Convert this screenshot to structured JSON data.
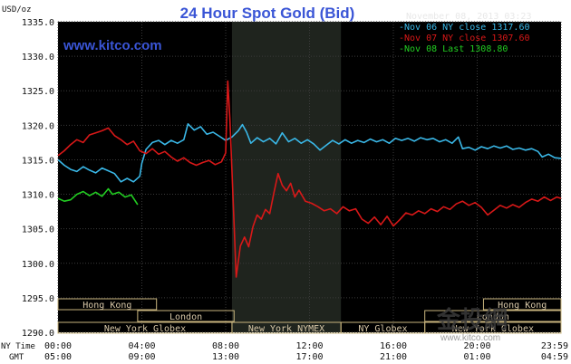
{
  "chart_data": {
    "type": "line",
    "title": "24 Hour Spot Gold (Bid)",
    "url_text": "www.kitco.com",
    "datetime": "November 08, 2013 03:23",
    "y_unit": "USD/oz",
    "ylim": [
      1290,
      1335
    ],
    "y_ticks": [
      "1335.0",
      "1330.0",
      "1325.0",
      "1320.0",
      "1315.0",
      "1310.0",
      "1305.0",
      "1300.0",
      "1295.0",
      "1290.0"
    ],
    "x_hours": [
      0,
      24
    ],
    "tz_labels": [
      "NY Time",
      "GMT"
    ],
    "x_ticks_ny": [
      "00:00",
      "04:00",
      "08:00",
      "12:00",
      "16:00",
      "20:00",
      "23:59"
    ],
    "x_ticks_gmt": [
      "05:00",
      "09:00",
      "13:00",
      "17:00",
      "21:00",
      "01:00",
      "04:59"
    ],
    "grid": true,
    "highlight_band_hours": [
      8.3,
      13.5
    ],
    "sessions": [
      {
        "label": "Hong Kong",
        "start": 0,
        "end": 4.7
      },
      {
        "label": "London",
        "start": 3.8,
        "end": 8.4
      },
      {
        "label": "New York Globex",
        "start": 0,
        "end": 8.3
      },
      {
        "label": "New York NYMEX",
        "start": 8.3,
        "end": 13.5
      },
      {
        "label": "NY Globex",
        "start": 13.5,
        "end": 17.5
      },
      {
        "label": "Hong Kong",
        "start": 20.3,
        "end": 24
      },
      {
        "label": "London",
        "start": 17.5,
        "end": 24
      },
      {
        "label": "New York Globex",
        "start": 17.5,
        "end": 24
      }
    ],
    "legend_position": "top-right",
    "series": [
      {
        "name": "Nov 06 NY close 1317.60",
        "color": "#3ab8e8",
        "points": [
          [
            0,
            1315.0
          ],
          [
            0.3,
            1314.2
          ],
          [
            0.6,
            1313.6
          ],
          [
            0.9,
            1313.3
          ],
          [
            1.2,
            1314.0
          ],
          [
            1.5,
            1313.5
          ],
          [
            1.8,
            1313.1
          ],
          [
            2.1,
            1313.8
          ],
          [
            2.4,
            1313.4
          ],
          [
            2.7,
            1313.0
          ],
          [
            3.0,
            1311.8
          ],
          [
            3.3,
            1312.3
          ],
          [
            3.6,
            1311.8
          ],
          [
            3.9,
            1312.6
          ],
          [
            4.0,
            1314.5
          ],
          [
            4.2,
            1316.5
          ],
          [
            4.5,
            1317.5
          ],
          [
            4.8,
            1317.8
          ],
          [
            5.1,
            1317.2
          ],
          [
            5.4,
            1317.8
          ],
          [
            5.7,
            1317.4
          ],
          [
            6.0,
            1317.9
          ],
          [
            6.2,
            1320.2
          ],
          [
            6.5,
            1319.3
          ],
          [
            6.8,
            1319.8
          ],
          [
            7.1,
            1318.7
          ],
          [
            7.4,
            1319.0
          ],
          [
            7.7,
            1318.4
          ],
          [
            8.0,
            1317.8
          ],
          [
            8.3,
            1318.3
          ],
          [
            8.6,
            1319.2
          ],
          [
            8.8,
            1320.1
          ],
          [
            9.0,
            1319.0
          ],
          [
            9.2,
            1317.4
          ],
          [
            9.5,
            1318.2
          ],
          [
            9.8,
            1317.6
          ],
          [
            10.1,
            1318.1
          ],
          [
            10.4,
            1317.3
          ],
          [
            10.7,
            1318.9
          ],
          [
            11.0,
            1317.6
          ],
          [
            11.3,
            1318.1
          ],
          [
            11.6,
            1317.4
          ],
          [
            11.9,
            1317.9
          ],
          [
            12.2,
            1317.3
          ],
          [
            12.5,
            1316.4
          ],
          [
            12.8,
            1317.1
          ],
          [
            13.1,
            1317.8
          ],
          [
            13.4,
            1317.3
          ],
          [
            13.7,
            1317.9
          ],
          [
            14.0,
            1317.4
          ],
          [
            14.3,
            1317.8
          ],
          [
            14.6,
            1317.5
          ],
          [
            14.9,
            1318.0
          ],
          [
            15.2,
            1317.6
          ],
          [
            15.5,
            1317.9
          ],
          [
            15.8,
            1317.4
          ],
          [
            16.1,
            1318.1
          ],
          [
            16.4,
            1317.8
          ],
          [
            16.7,
            1318.1
          ],
          [
            17.0,
            1317.7
          ],
          [
            17.3,
            1318.2
          ],
          [
            17.6,
            1317.9
          ],
          [
            17.9,
            1318.1
          ],
          [
            18.2,
            1317.6
          ],
          [
            18.5,
            1317.9
          ],
          [
            18.8,
            1317.4
          ],
          [
            19.1,
            1318.3
          ],
          [
            19.3,
            1316.6
          ],
          [
            19.6,
            1316.8
          ],
          [
            19.9,
            1316.4
          ],
          [
            20.2,
            1316.9
          ],
          [
            20.5,
            1316.6
          ],
          [
            20.8,
            1317.0
          ],
          [
            21.1,
            1316.7
          ],
          [
            21.4,
            1317.0
          ],
          [
            21.7,
            1316.5
          ],
          [
            22.0,
            1316.7
          ],
          [
            22.3,
            1316.4
          ],
          [
            22.6,
            1316.6
          ],
          [
            22.9,
            1316.2
          ],
          [
            23.1,
            1315.4
          ],
          [
            23.4,
            1315.8
          ],
          [
            23.7,
            1315.3
          ],
          [
            24.0,
            1315.2
          ]
        ]
      },
      {
        "name": "Nov 07 NY close 1307.60",
        "color": "#d81818",
        "points": [
          [
            0,
            1315.6
          ],
          [
            0.3,
            1316.3
          ],
          [
            0.6,
            1317.2
          ],
          [
            0.9,
            1317.9
          ],
          [
            1.2,
            1317.5
          ],
          [
            1.5,
            1318.6
          ],
          [
            1.8,
            1318.9
          ],
          [
            2.1,
            1319.2
          ],
          [
            2.4,
            1319.6
          ],
          [
            2.7,
            1318.5
          ],
          [
            3.0,
            1317.9
          ],
          [
            3.3,
            1317.2
          ],
          [
            3.6,
            1317.7
          ],
          [
            3.9,
            1316.3
          ],
          [
            4.2,
            1315.9
          ],
          [
            4.5,
            1316.6
          ],
          [
            4.8,
            1315.8
          ],
          [
            5.1,
            1316.2
          ],
          [
            5.4,
            1315.4
          ],
          [
            5.7,
            1314.8
          ],
          [
            6.0,
            1315.3
          ],
          [
            6.3,
            1314.6
          ],
          [
            6.6,
            1314.2
          ],
          [
            6.9,
            1314.6
          ],
          [
            7.2,
            1314.9
          ],
          [
            7.5,
            1314.3
          ],
          [
            7.8,
            1314.7
          ],
          [
            8.0,
            1316.0
          ],
          [
            8.1,
            1326.4
          ],
          [
            8.2,
            1321.0
          ],
          [
            8.3,
            1313.5
          ],
          [
            8.5,
            1298.0
          ],
          [
            8.7,
            1302.5
          ],
          [
            8.9,
            1303.8
          ],
          [
            9.1,
            1302.4
          ],
          [
            9.3,
            1305.3
          ],
          [
            9.5,
            1307.0
          ],
          [
            9.7,
            1306.4
          ],
          [
            9.9,
            1307.8
          ],
          [
            10.1,
            1307.2
          ],
          [
            10.3,
            1310.2
          ],
          [
            10.5,
            1313.0
          ],
          [
            10.7,
            1311.3
          ],
          [
            10.9,
            1310.5
          ],
          [
            11.1,
            1311.6
          ],
          [
            11.3,
            1309.6
          ],
          [
            11.5,
            1310.6
          ],
          [
            11.8,
            1309.0
          ],
          [
            12.1,
            1308.7
          ],
          [
            12.4,
            1308.2
          ],
          [
            12.7,
            1307.6
          ],
          [
            13.0,
            1307.9
          ],
          [
            13.3,
            1307.2
          ],
          [
            13.6,
            1308.2
          ],
          [
            13.9,
            1307.6
          ],
          [
            14.2,
            1307.9
          ],
          [
            14.5,
            1306.4
          ],
          [
            14.8,
            1305.8
          ],
          [
            15.1,
            1306.7
          ],
          [
            15.4,
            1305.6
          ],
          [
            15.7,
            1306.8
          ],
          [
            16.0,
            1305.4
          ],
          [
            16.3,
            1306.3
          ],
          [
            16.6,
            1307.3
          ],
          [
            16.9,
            1307.0
          ],
          [
            17.2,
            1307.6
          ],
          [
            17.5,
            1307.2
          ],
          [
            17.8,
            1307.9
          ],
          [
            18.1,
            1307.5
          ],
          [
            18.4,
            1308.2
          ],
          [
            18.7,
            1307.8
          ],
          [
            19.0,
            1308.6
          ],
          [
            19.3,
            1309.0
          ],
          [
            19.6,
            1308.4
          ],
          [
            19.9,
            1308.8
          ],
          [
            20.2,
            1308.1
          ],
          [
            20.5,
            1307.0
          ],
          [
            20.8,
            1307.7
          ],
          [
            21.1,
            1308.4
          ],
          [
            21.4,
            1308.0
          ],
          [
            21.7,
            1308.5
          ],
          [
            22.0,
            1308.1
          ],
          [
            22.3,
            1308.8
          ],
          [
            22.6,
            1309.3
          ],
          [
            22.9,
            1309.0
          ],
          [
            23.2,
            1309.6
          ],
          [
            23.5,
            1309.1
          ],
          [
            23.8,
            1309.6
          ],
          [
            24.0,
            1309.4
          ]
        ]
      },
      {
        "name": "Nov 08 Last 1308.80",
        "color": "#22cc22",
        "points": [
          [
            0,
            1309.4
          ],
          [
            0.3,
            1309.0
          ],
          [
            0.6,
            1309.2
          ],
          [
            0.9,
            1310.0
          ],
          [
            1.2,
            1310.4
          ],
          [
            1.5,
            1309.8
          ],
          [
            1.8,
            1310.3
          ],
          [
            2.1,
            1309.7
          ],
          [
            2.4,
            1310.8
          ],
          [
            2.6,
            1310.0
          ],
          [
            2.9,
            1310.3
          ],
          [
            3.2,
            1309.6
          ],
          [
            3.5,
            1309.9
          ],
          [
            3.8,
            1308.5
          ]
        ]
      }
    ]
  },
  "watermark": {
    "brand": "金投網",
    "site": "www.kitco.com"
  }
}
